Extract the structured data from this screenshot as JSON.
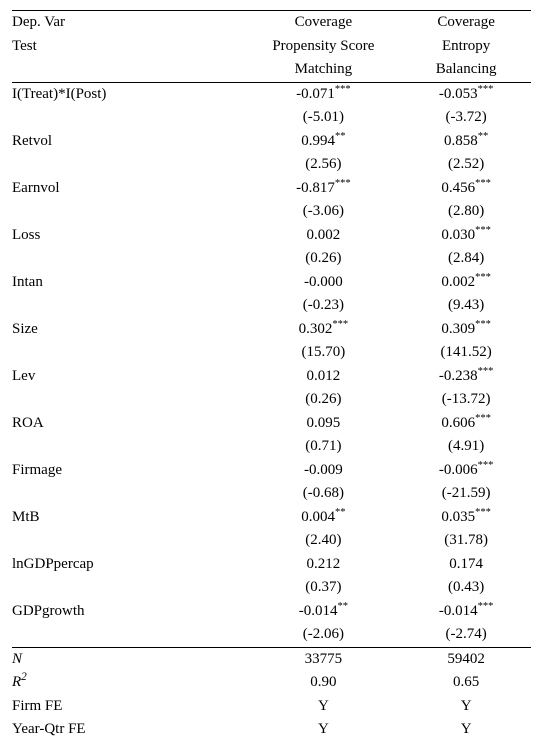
{
  "header": {
    "dep_var_label": "Dep. Var",
    "test_label": "Test",
    "col1_l1": "Coverage",
    "col1_l2": "Propensity Score",
    "col1_l3": "Matching",
    "col2_l1": "Coverage",
    "col2_l2": "Entropy",
    "col2_l3": "Balancing"
  },
  "rows": [
    {
      "label": "I(Treat)*I(Post)",
      "c1": "-0.071",
      "c1s": "***",
      "c2": "-0.053",
      "c2s": "***",
      "t1": "(-5.01)",
      "t2": "(-3.72)"
    },
    {
      "label": "Retvol",
      "c1": "0.994",
      "c1s": "**",
      "c2": "0.858",
      "c2s": "**",
      "t1": "(2.56)",
      "t2": "(2.52)"
    },
    {
      "label": "Earnvol",
      "c1": "-0.817",
      "c1s": "***",
      "c2": "0.456",
      "c2s": "***",
      "t1": "(-3.06)",
      "t2": "(2.80)"
    },
    {
      "label": "Loss",
      "c1": "0.002",
      "c1s": "",
      "c2": "0.030",
      "c2s": "***",
      "t1": "(0.26)",
      "t2": "(2.84)"
    },
    {
      "label": "Intan",
      "c1": "-0.000",
      "c1s": "",
      "c2": "0.002",
      "c2s": "***",
      "t1": "(-0.23)",
      "t2": "(9.43)"
    },
    {
      "label": "Size",
      "c1": "0.302",
      "c1s": "***",
      "c2": "0.309",
      "c2s": "***",
      "t1": "(15.70)",
      "t2": "(141.52)"
    },
    {
      "label": "Lev",
      "c1": "0.012",
      "c1s": "",
      "c2": "-0.238",
      "c2s": "***",
      "t1": "(0.26)",
      "t2": "(-13.72)"
    },
    {
      "label": "ROA",
      "c1": "0.095",
      "c1s": "",
      "c2": "0.606",
      "c2s": "***",
      "t1": "(0.71)",
      "t2": "(4.91)"
    },
    {
      "label": "Firmage",
      "c1": "-0.009",
      "c1s": "",
      "c2": "-0.006",
      "c2s": "***",
      "t1": "(-0.68)",
      "t2": "(-21.59)"
    },
    {
      "label": "MtB",
      "c1": "0.004",
      "c1s": "**",
      "c2": "0.035",
      "c2s": "***",
      "t1": "(2.40)",
      "t2": "(31.78)"
    },
    {
      "label": "lnGDPpercap",
      "c1": "0.212",
      "c1s": "",
      "c2": "0.174",
      "c2s": "",
      "t1": "(0.37)",
      "t2": "(0.43)"
    },
    {
      "label": "GDPgrowth",
      "c1": "-0.014",
      "c1s": "**",
      "c2": "-0.014",
      "c2s": "***",
      "t1": "(-2.06)",
      "t2": "(-2.74)"
    }
  ],
  "footer": {
    "n_label": "N",
    "n_c1": "33775",
    "n_c2": "59402",
    "r2_label_prefix": "R",
    "r2_label_sup": "2",
    "r2_c1": "0.90",
    "r2_c2": "0.65",
    "firmfe_label": "Firm FE",
    "firmfe_c1": "Y",
    "firmfe_c2": "Y",
    "yqfe_label": "Year-Qtr FE",
    "yqfe_c1": "Y",
    "yqfe_c2": "Y"
  }
}
